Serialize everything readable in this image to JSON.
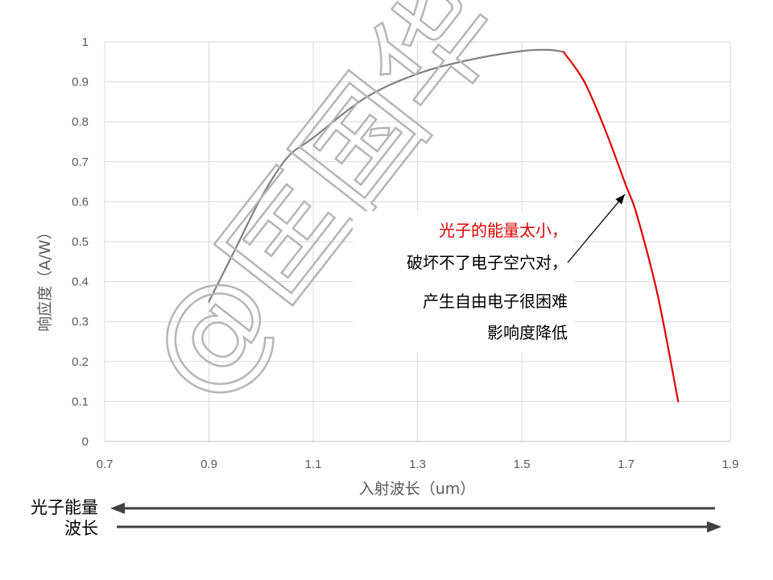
{
  "chart_data": {
    "type": "line",
    "title": "",
    "xlabel": "入射波长（um）",
    "ylabel": "响应度（A/W）",
    "xlim": [
      0.7,
      1.9
    ],
    "ylim": [
      0,
      1
    ],
    "xticks": [
      "0.7",
      "0.9",
      "1.1",
      "1.3",
      "1.5",
      "1.7",
      "1.9"
    ],
    "yticks": [
      "0",
      "0.1",
      "0.2",
      "0.3",
      "0.4",
      "0.5",
      "0.6",
      "0.7",
      "0.8",
      "0.9",
      "1"
    ],
    "grid": true,
    "series": [
      {
        "color": "#7f7f7f",
        "x": [
          0.9,
          0.95,
          1.0,
          1.05,
          1.1,
          1.2,
          1.3,
          1.4,
          1.5,
          1.55,
          1.58
        ],
        "y": [
          0.35,
          0.48,
          0.61,
          0.71,
          0.76,
          0.86,
          0.92,
          0.955,
          0.977,
          0.98,
          0.975
        ]
      },
      {
        "color": "#e00000",
        "x": [
          1.58,
          1.62,
          1.66,
          1.7,
          1.72,
          1.76,
          1.8
        ],
        "y": [
          0.975,
          0.9,
          0.78,
          0.64,
          0.57,
          0.37,
          0.1
        ]
      }
    ],
    "annotation": {
      "lines": [
        {
          "text": "光子的能量太小，",
          "color": "#e00000"
        },
        {
          "text": "破坏不了电子空穴对，",
          "color": "#000000"
        },
        {
          "text": "产生自由电子很困难",
          "color": "#000000"
        },
        {
          "text": "影响度降低",
          "color": "#000000"
        }
      ],
      "arrow_tip": [
        1.71,
        0.57
      ]
    }
  },
  "arrows": {
    "photon_energy_label": "光子能量",
    "wavelength_label": "波长"
  },
  "watermark": "@匡国华"
}
